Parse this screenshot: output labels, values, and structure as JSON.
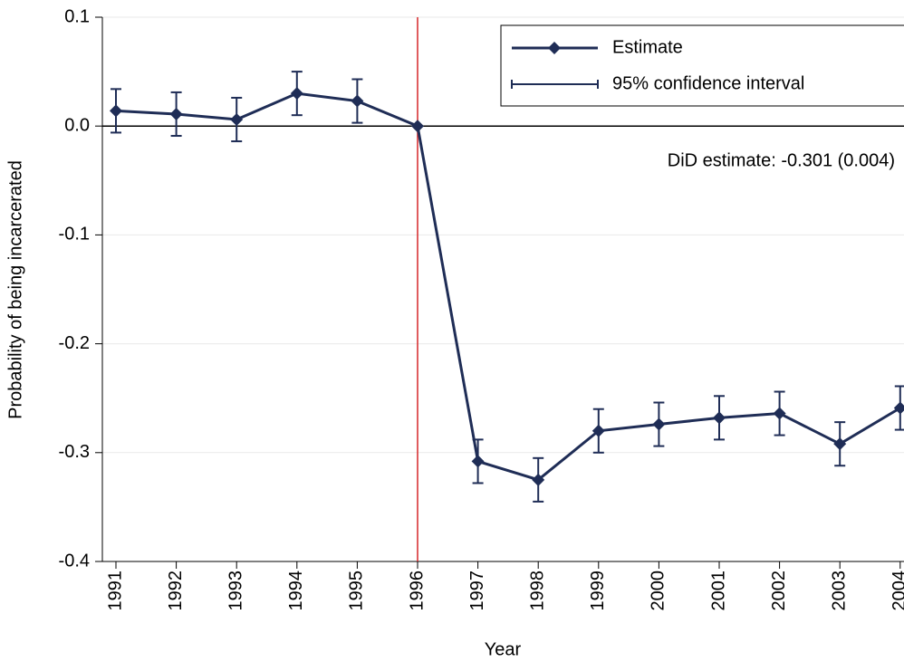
{
  "chart_data": {
    "type": "line",
    "y_label": "Probability of being incarcerated",
    "x_label": "Year",
    "categories": [
      "1991",
      "1992",
      "1993",
      "1994",
      "1995",
      "1996",
      "1997",
      "1998",
      "1999",
      "2000",
      "2001",
      "2002",
      "2003",
      "2004"
    ],
    "series": [
      {
        "name": "Estimate",
        "color": "#1f2d56",
        "values": [
          0.014,
          0.011,
          0.006,
          0.03,
          0.023,
          0,
          -0.308,
          -0.325,
          -0.28,
          -0.274,
          -0.268,
          -0.264,
          -0.292,
          -0.259
        ]
      }
    ],
    "interval": {
      "name": "95% confidence interval",
      "color": "#1f2d56",
      "lower": [
        -0.006,
        -0.009,
        -0.014,
        0.01,
        0.003,
        null,
        -0.328,
        -0.345,
        -0.3,
        -0.294,
        -0.288,
        -0.284,
        -0.312,
        -0.279
      ],
      "upper": [
        0.034,
        0.031,
        0.026,
        0.05,
        0.043,
        null,
        -0.288,
        -0.305,
        -0.26,
        -0.254,
        -0.248,
        -0.244,
        -0.272,
        -0.239
      ]
    },
    "ylim": [
      -0.4,
      0.1
    ],
    "yticks": [
      0.1,
      {
        "value": 0,
        "label": "0.0"
      },
      -0.1,
      -0.2,
      -0.3,
      -0.4
    ],
    "grid": true,
    "hline": 0,
    "vline": "1996",
    "vline_color": "#d62728",
    "annotation": "DiD estimate: -0.301 (0.004)",
    "legend": "top-right"
  }
}
